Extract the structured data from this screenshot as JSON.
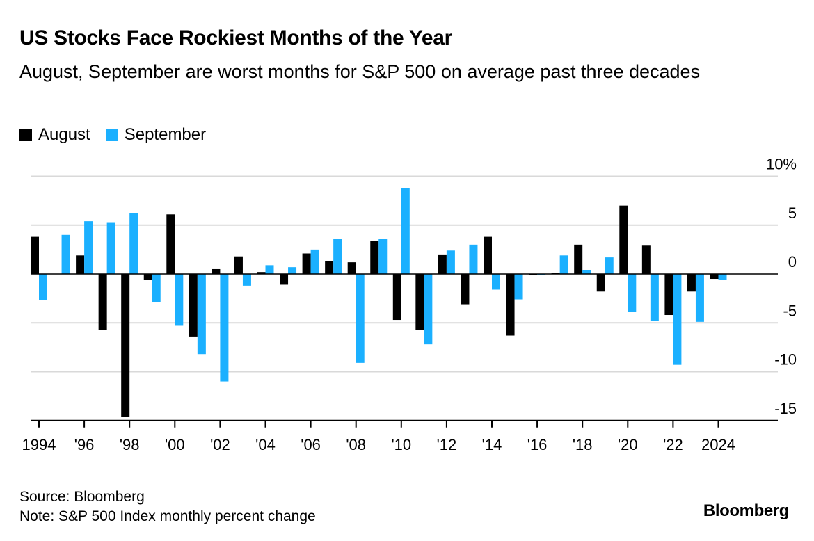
{
  "title": "US Stocks Face Rockiest Months of the Year",
  "subtitle": "August, September are worst months for S&P 500 on average past three decades",
  "legend": [
    {
      "label": "August",
      "color": "#000000"
    },
    {
      "label": "September",
      "color": "#1BB0FF"
    }
  ],
  "footer": {
    "source": "Source: Bloomberg",
    "note": "Note: S&P 500 Index monthly percent change"
  },
  "brand": "Bloomberg",
  "chart_data": {
    "type": "bar",
    "x": [
      1994,
      1995,
      1996,
      1997,
      1998,
      1999,
      2000,
      2001,
      2002,
      2003,
      2004,
      2005,
      2006,
      2007,
      2008,
      2009,
      2010,
      2011,
      2012,
      2013,
      2014,
      2015,
      2016,
      2017,
      2018,
      2019,
      2020,
      2021,
      2022,
      2023,
      2024
    ],
    "series": [
      {
        "name": "August",
        "color": "#000000",
        "values": [
          3.8,
          0.0,
          1.9,
          -5.7,
          -14.6,
          -0.6,
          6.1,
          -6.4,
          0.5,
          1.8,
          0.2,
          -1.1,
          2.1,
          1.3,
          1.2,
          3.4,
          -4.7,
          -5.7,
          2.0,
          -3.1,
          3.8,
          -6.3,
          -0.1,
          0.1,
          3.0,
          -1.8,
          7.0,
          2.9,
          -4.2,
          -1.8,
          -0.5
        ]
      },
      {
        "name": "September",
        "color": "#1BB0FF",
        "values": [
          -2.7,
          4.0,
          5.4,
          5.3,
          6.2,
          -2.9,
          -5.3,
          -8.2,
          -11.0,
          -1.2,
          0.9,
          0.7,
          2.5,
          3.6,
          -9.1,
          3.6,
          8.8,
          -7.2,
          2.4,
          3.0,
          -1.6,
          -2.6,
          -0.1,
          1.9,
          0.4,
          1.7,
          -3.9,
          -4.8,
          -9.3,
          -4.9,
          -0.6
        ]
      }
    ],
    "x_tick_values": [
      1994,
      1996,
      1998,
      2000,
      2002,
      2004,
      2006,
      2008,
      2010,
      2012,
      2014,
      2016,
      2018,
      2020,
      2022,
      2024
    ],
    "x_tick_labels": [
      "1994",
      "'96",
      "'98",
      "'00",
      "'02",
      "'04",
      "'06",
      "'08",
      "'10",
      "'12",
      "'14",
      "'16",
      "'18",
      "'20",
      "'22",
      "2024"
    ],
    "y_ticks": [
      10,
      5,
      0,
      -5,
      -10,
      -15
    ],
    "y_tick_labels": [
      "10%",
      "5",
      "0",
      "-5",
      "-10",
      "-15"
    ],
    "ylim": [
      -15,
      10
    ],
    "grid": true,
    "legend_position": "top-left"
  }
}
